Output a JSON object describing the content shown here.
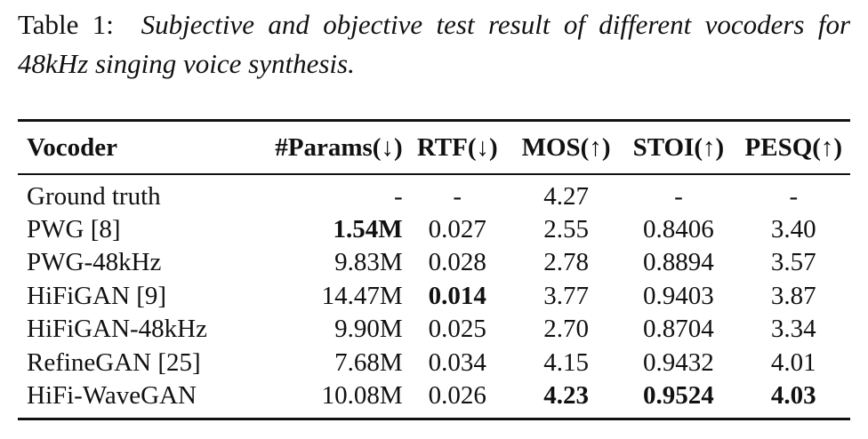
{
  "caption": {
    "label": "Table 1:",
    "text": "Subjective and objective test result of different vocoders for 48kHz singing voice synthesis."
  },
  "table": {
    "headers": [
      "Vocoder",
      "#Params(↓)",
      "RTF(↓)",
      "MOS(↑)",
      "STOI(↑)",
      "PESQ(↑)"
    ],
    "rows": [
      {
        "vocoder": "Ground truth",
        "params": "-",
        "rtf": "-",
        "mos": "4.27",
        "stoi": "-",
        "pesq": "-"
      },
      {
        "vocoder": "PWG [8]",
        "params": "1.54M",
        "rtf": "0.027",
        "mos": "2.55",
        "stoi": "0.8406",
        "pesq": "3.40"
      },
      {
        "vocoder": "PWG-48kHz",
        "params": "9.83M",
        "rtf": "0.028",
        "mos": "2.78",
        "stoi": "0.8894",
        "pesq": "3.57"
      },
      {
        "vocoder": "HiFiGAN [9]",
        "params": "14.47M",
        "rtf": "0.014",
        "mos": "3.77",
        "stoi": "0.9403",
        "pesq": "3.87"
      },
      {
        "vocoder": "HiFiGAN-48kHz",
        "params": "9.90M",
        "rtf": "0.025",
        "mos": "2.70",
        "stoi": "0.8704",
        "pesq": "3.34"
      },
      {
        "vocoder": "RefineGAN [25]",
        "params": "7.68M",
        "rtf": "0.034",
        "mos": "4.15",
        "stoi": "0.9432",
        "pesq": "4.01"
      },
      {
        "vocoder": "HiFi-WaveGAN",
        "params": "10.08M",
        "rtf": "0.026",
        "mos": "4.23",
        "stoi": "0.9524",
        "pesq": "4.03"
      }
    ]
  }
}
